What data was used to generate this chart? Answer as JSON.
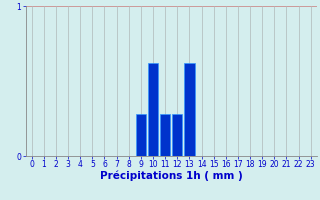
{
  "hours": [
    0,
    1,
    2,
    3,
    4,
    5,
    6,
    7,
    8,
    9,
    10,
    11,
    12,
    13,
    14,
    15,
    16,
    17,
    18,
    19,
    20,
    21,
    22,
    23
  ],
  "values": [
    0,
    0,
    0,
    0,
    0,
    0,
    0,
    0,
    0,
    0.28,
    0.62,
    0.28,
    0.28,
    0.62,
    0,
    0,
    0,
    0,
    0,
    0,
    0,
    0,
    0,
    0
  ],
  "bar_color": "#0033cc",
  "bar_edge_color": "#3399ff",
  "background_color": "#d4eeee",
  "grid_color_h": "#cc9999",
  "grid_color_v": "#b0b8b8",
  "xlabel": "Précipitations 1h ( mm )",
  "xlabel_color": "#0000cc",
  "tick_color": "#0000cc",
  "ylim": [
    0,
    1
  ],
  "xlim": [
    -0.5,
    23.5
  ],
  "yticks": [
    0,
    1
  ],
  "xticks": [
    0,
    1,
    2,
    3,
    4,
    5,
    6,
    7,
    8,
    9,
    10,
    11,
    12,
    13,
    14,
    15,
    16,
    17,
    18,
    19,
    20,
    21,
    22,
    23
  ],
  "tick_fontsize": 5.5,
  "xlabel_fontsize": 7.5
}
